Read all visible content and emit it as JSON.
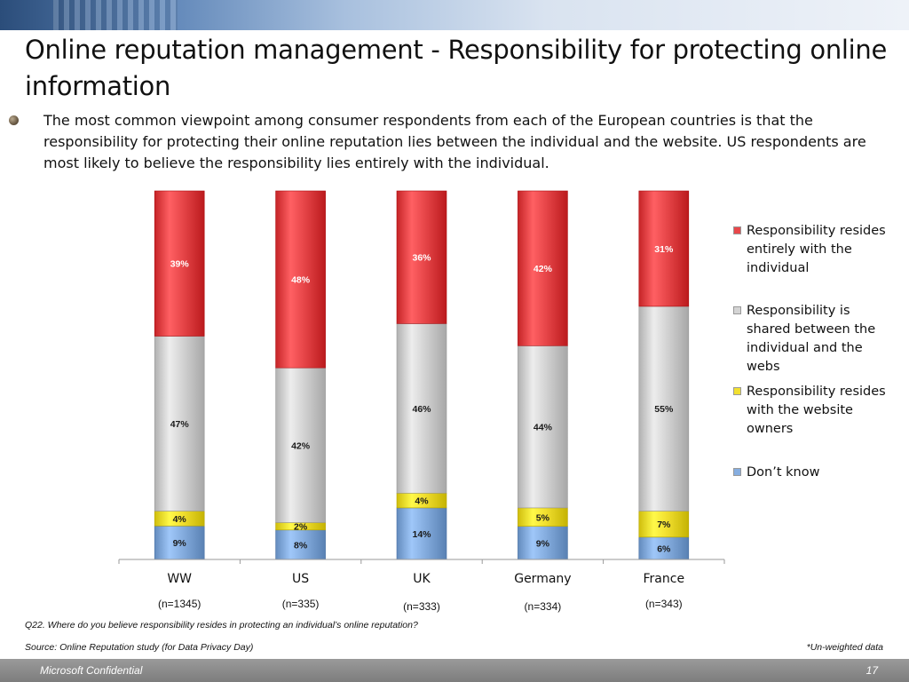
{
  "slide": {
    "title": "Online reputation management - Responsibility for protecting online information",
    "bullet": "The most common viewpoint among consumer respondents from each of the European countries is that the responsibility for protecting their online reputation lies between the individual and the website. US respondents are most likely to believe the responsibility lies entirely with the individual.",
    "question": "Q22. Where do you believe responsibility resides in protecting an individual’s online reputation?",
    "source": "Source: Online Reputation study (for Data Privacy Day)",
    "note": "*Un-weighted data",
    "footer_left": "Microsoft Confidential",
    "page_number": "17"
  },
  "colors": {
    "individual": "#e8474a",
    "shared": "#d4d4d4",
    "website": "#f2e030",
    "dont_know": "#86aee0"
  },
  "chart_data": {
    "type": "bar",
    "stacked": "100%",
    "categories": [
      "WW",
      "US",
      "UK",
      "Germany",
      "France"
    ],
    "sample_sizes": [
      "(n=1345)",
      "(n=335)",
      "(n=333)",
      "(n=334)",
      "(n=343)"
    ],
    "series": [
      {
        "name": "Don’t know",
        "key": "dont_know",
        "values": [
          9,
          8,
          14,
          9,
          6
        ]
      },
      {
        "name": "Responsibility resides with the website owners",
        "key": "website",
        "values": [
          4,
          2,
          4,
          5,
          7
        ]
      },
      {
        "name": "Responsibility is shared between the individual and the webs",
        "key": "shared",
        "values": [
          47,
          42,
          46,
          44,
          55
        ]
      },
      {
        "name": "Responsibility resides entirely with the individual",
        "key": "individual",
        "values": [
          39,
          48,
          36,
          42,
          31
        ]
      }
    ],
    "value_suffix": "%",
    "legend": [
      {
        "key": "individual",
        "label": "Responsibility resides entirely with the individual"
      },
      {
        "key": "shared",
        "label": "Responsibility is shared between the individual and the webs"
      },
      {
        "key": "website",
        "label": "Responsibility resides with the website owners"
      },
      {
        "key": "dont_know",
        "label": "Don’t know"
      }
    ],
    "legend_position": "right",
    "grid": false
  }
}
